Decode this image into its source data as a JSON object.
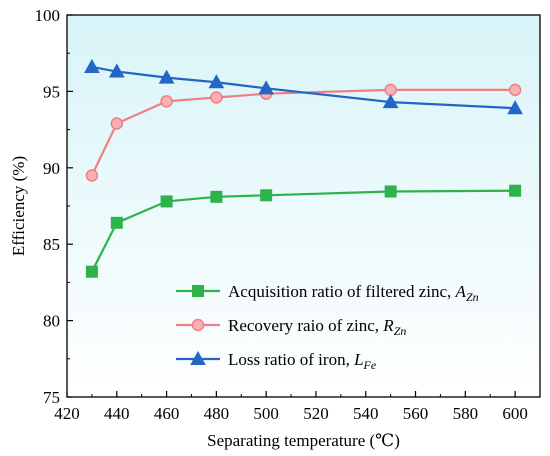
{
  "chart_data": {
    "type": "line",
    "title": "",
    "xlabel": "Separating temperature (℃)",
    "ylabel": "Efficiency (%)",
    "xlim": [
      420,
      610
    ],
    "ylim": [
      75,
      100
    ],
    "xticks": [
      420,
      440,
      460,
      480,
      500,
      520,
      540,
      560,
      580,
      600
    ],
    "yticks": [
      75,
      80,
      85,
      90,
      95,
      100
    ],
    "x": [
      430,
      440,
      460,
      480,
      500,
      550,
      600
    ],
    "grid": false,
    "legend_position": "bottom-right",
    "background_gradient": [
      "#d8f4f8",
      "#ffffff"
    ],
    "series": [
      {
        "name": "Acquisition ratio of filtered zinc, ",
        "name_symbol": "A",
        "name_sub": "Zn",
        "marker": "square",
        "color": "#2db34a",
        "marker_color": "#2db34a",
        "values": [
          83.2,
          86.4,
          87.8,
          88.1,
          88.2,
          88.45,
          88.5
        ]
      },
      {
        "name": "Recovery raio of zinc, ",
        "name_symbol": "R",
        "name_sub": "Zn",
        "marker": "circle",
        "color": "#f07f84",
        "marker_color": "#f9b1b4",
        "values": [
          89.5,
          92.9,
          94.35,
          94.6,
          94.85,
          95.1,
          95.1
        ]
      },
      {
        "name": "Loss ratio of iron, ",
        "name_symbol": "L",
        "name_sub": "Fe",
        "marker": "triangle",
        "color": "#2366c6",
        "marker_color": "#2366c6",
        "values": [
          96.6,
          96.3,
          95.9,
          95.6,
          95.2,
          94.3,
          93.9
        ]
      }
    ]
  }
}
